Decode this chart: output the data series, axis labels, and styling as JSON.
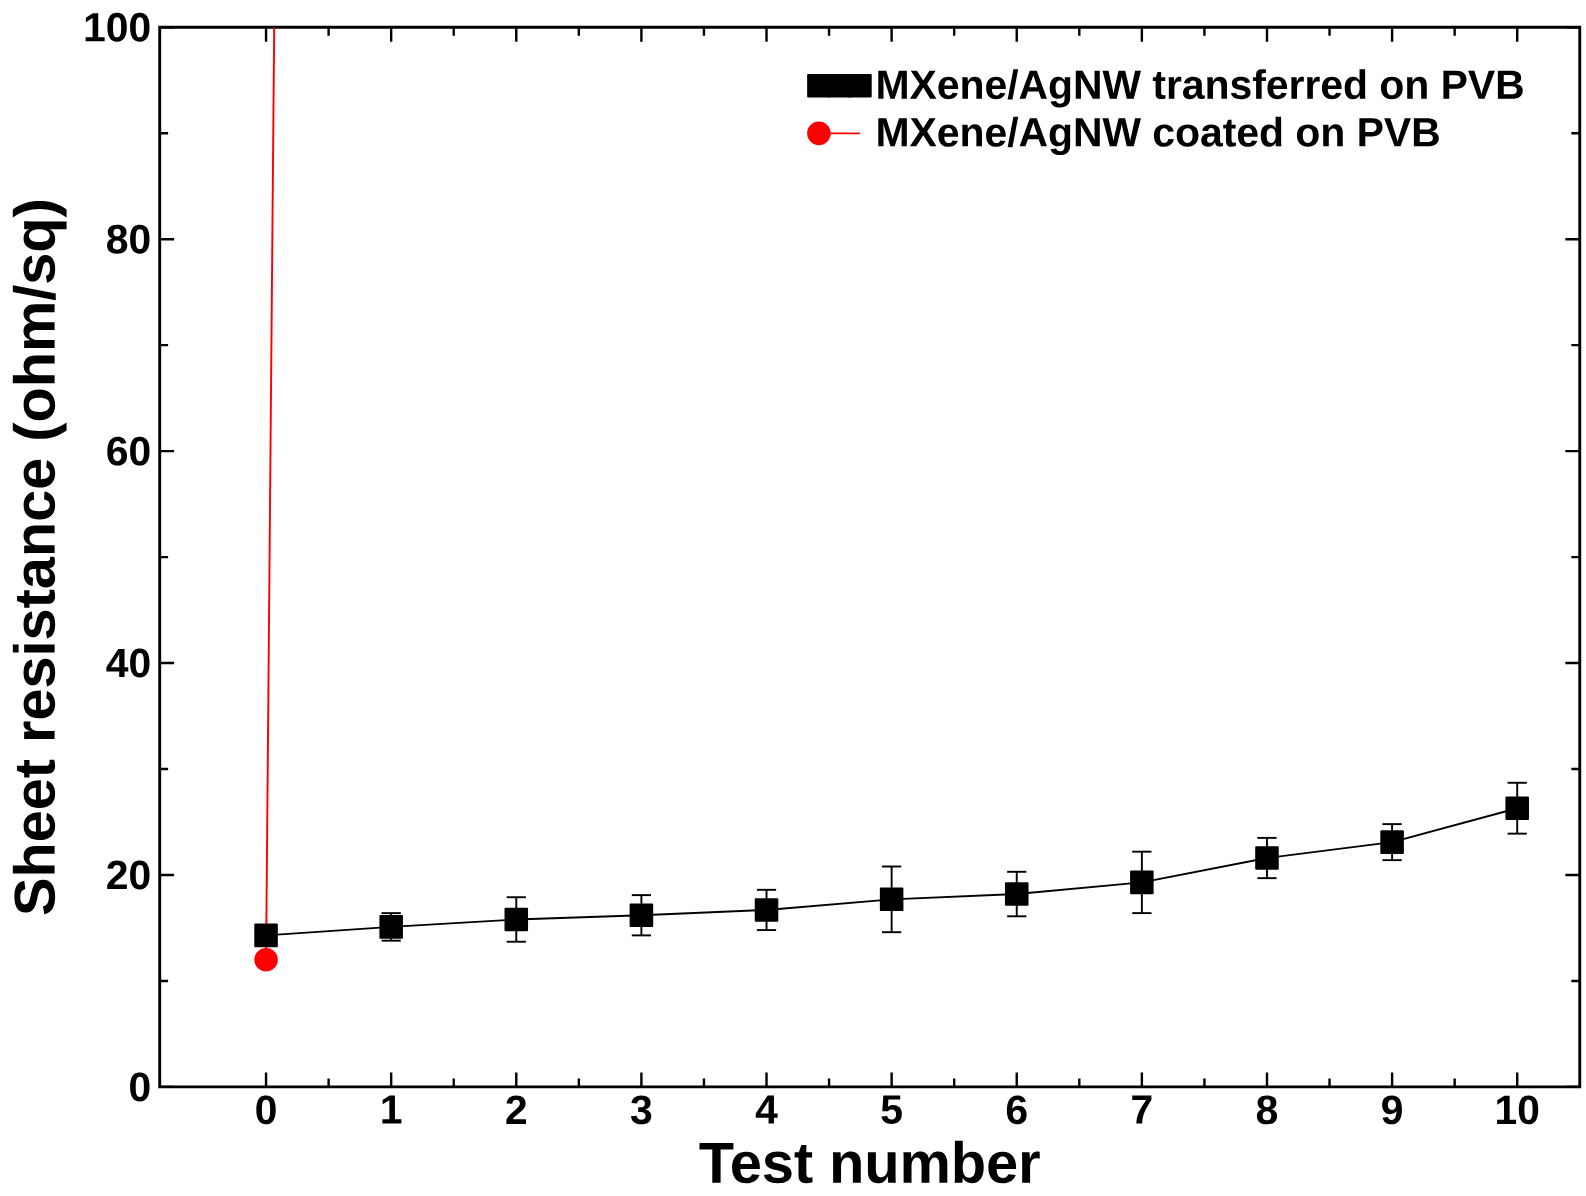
{
  "chart_data": {
    "type": "line",
    "xlabel": "Test number",
    "ylabel": "Sheet resistance (ohm/sq)",
    "xlim": [
      -0.85,
      10.5
    ],
    "xticks": [
      0,
      1,
      2,
      3,
      4,
      5,
      6,
      7,
      8,
      9,
      10
    ],
    "ylim": [
      0,
      100
    ],
    "yticks": [
      0,
      20,
      40,
      60,
      80,
      100
    ],
    "grid": false,
    "legend": "top right",
    "line_style": "solid",
    "series": [
      {
        "name": "MXene/AgNW transferred on PVB",
        "color": "#000000",
        "marker": "square",
        "x": [
          0,
          1,
          2,
          3,
          4,
          5,
          6,
          7,
          8,
          9,
          10
        ],
        "values": [
          14.3,
          15.1,
          15.8,
          16.2,
          16.7,
          17.7,
          18.2,
          19.3,
          21.6,
          23.1,
          26.3
        ],
        "errors": [
          null,
          1.3,
          2.1,
          1.9,
          1.9,
          3.1,
          2.1,
          2.9,
          1.9,
          1.7,
          2.4
        ]
      },
      {
        "name": "MXene/AgNW coated on PVB",
        "color": "#ff0000",
        "marker": "circle",
        "x": [
          0,
          0.065
        ],
        "values": [
          12.0,
          100
        ]
      }
    ]
  }
}
